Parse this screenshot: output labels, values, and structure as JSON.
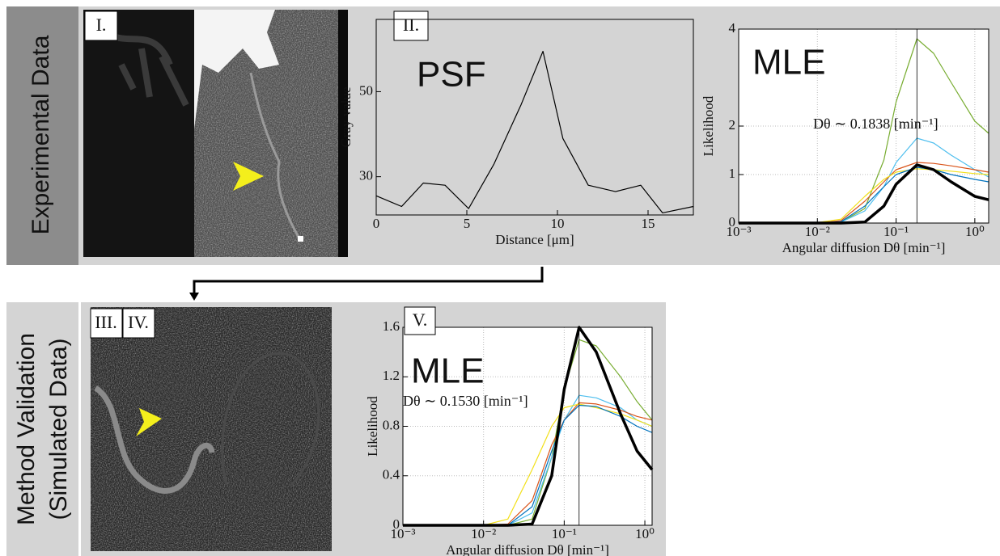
{
  "labels": {
    "top": "Experimental Data",
    "bottom": [
      "Method Validation",
      "(Simulated Data)"
    ]
  },
  "panels": [
    "I.",
    "II.",
    "III.",
    "IV.",
    "V."
  ],
  "chart_data": [
    {
      "type": "line",
      "annotation": "PSF",
      "xlabel": "Distance [μm]",
      "ylabel": "Gray value",
      "x": [
        0,
        1.4,
        2.6,
        3.8,
        5.1,
        6.5,
        8,
        9.2,
        10.3,
        11.7,
        13.2,
        14.6,
        15.8,
        17.5
      ],
      "series": [
        {
          "color": "#000000",
          "values": [
            25.5,
            23,
            28.5,
            28,
            22.5,
            33,
            47,
            59.5,
            39,
            28,
            26.5,
            28,
            21.5,
            23
          ]
        }
      ],
      "xlim": [
        0,
        17.5
      ],
      "ylim": [
        21,
        67
      ],
      "xticks": [
        0,
        5,
        10,
        15
      ],
      "yticks": [
        30,
        50
      ],
      "grid": false
    },
    {
      "type": "line",
      "annotation": "MLE",
      "note": "Dθ ∼ 0.1838 [min⁻¹]",
      "estimate": 0.1838,
      "xlabel": "Angular diffusion Dθ [min⁻¹]",
      "ylabel": "Likelihood",
      "xscale": "log",
      "grid": true,
      "x": [
        0.001,
        0.003,
        0.01,
        0.02,
        0.04,
        0.07,
        0.1,
        0.1838,
        0.3,
        0.5,
        1,
        1.5
      ],
      "series": [
        {
          "color": "#77ac30",
          "values": [
            0,
            0,
            0,
            0.02,
            0.3,
            1.3,
            2.5,
            3.8,
            3.5,
            2.9,
            2.1,
            1.85
          ]
        },
        {
          "color": "#4dbeee",
          "values": [
            0,
            0,
            0,
            0.02,
            0.25,
            0.75,
            1.25,
            1.75,
            1.65,
            1.4,
            1.1,
            0.95
          ]
        },
        {
          "color": "#d95319",
          "values": [
            0,
            0,
            0,
            0.05,
            0.45,
            0.85,
            1.1,
            1.25,
            1.23,
            1.18,
            1.1,
            1.05
          ]
        },
        {
          "color": "#f2e01a",
          "values": [
            0,
            0,
            0.01,
            0.08,
            0.55,
            0.9,
            1.05,
            1.12,
            1.1,
            1.07,
            1.02,
            1.0
          ]
        },
        {
          "color": "#0072bd",
          "values": [
            0,
            0,
            0,
            0.03,
            0.35,
            0.75,
            1.0,
            1.15,
            1.1,
            1.0,
            0.9,
            0.85
          ]
        },
        {
          "color": "#000000",
          "line_width": 3.5,
          "values": [
            0,
            0,
            0,
            0,
            0.02,
            0.35,
            0.8,
            1.2,
            1.1,
            0.85,
            0.55,
            0.48
          ]
        }
      ],
      "xlim": [
        0.001,
        1.5
      ],
      "ylim": [
        0,
        4
      ],
      "xticks": [
        {
          "value": 0.001,
          "label": "10⁻³"
        },
        {
          "value": 0.01,
          "label": "10⁻²"
        },
        {
          "value": 0.1,
          "label": "10⁻¹"
        },
        {
          "value": 1,
          "label": "10⁰"
        }
      ],
      "yticks": [
        0,
        1,
        2,
        4
      ]
    },
    {
      "type": "line",
      "annotation": "MLE",
      "note": "Dθ ∼ 0.1530 [min⁻¹]",
      "estimate": 0.153,
      "xlabel": "Angular diffusion Dθ [min⁻¹]",
      "ylabel": "Likelihood",
      "xscale": "log",
      "grid": true,
      "x": [
        0.001,
        0.005,
        0.01,
        0.02,
        0.04,
        0.07,
        0.1,
        0.153,
        0.25,
        0.5,
        0.8,
        1.23
      ],
      "series": [
        {
          "color": "#77ac30",
          "values": [
            0,
            0,
            0,
            0,
            0.05,
            0.55,
            1.1,
            1.5,
            1.45,
            1.2,
            1.0,
            0.85
          ]
        },
        {
          "color": "#4dbeee",
          "values": [
            0,
            0,
            0,
            0,
            0.1,
            0.55,
            0.85,
            1.05,
            1.03,
            0.95,
            0.85,
            0.8
          ]
        },
        {
          "color": "#d95319",
          "values": [
            0,
            0,
            0,
            0.01,
            0.2,
            0.65,
            0.85,
            0.99,
            0.98,
            0.93,
            0.88,
            0.85
          ]
        },
        {
          "color": "#f2e01a",
          "values": [
            0,
            0,
            0,
            0.05,
            0.45,
            0.8,
            0.95,
            0.98,
            0.95,
            0.9,
            0.85,
            0.8
          ]
        },
        {
          "color": "#0072bd",
          "values": [
            0,
            0,
            0,
            0,
            0.15,
            0.6,
            0.85,
            0.97,
            0.96,
            0.88,
            0.8,
            0.75
          ]
        },
        {
          "color": "#000000",
          "line_width": 3.5,
          "values": [
            0,
            0,
            0,
            0,
            0.01,
            0.4,
            1.1,
            1.6,
            1.4,
            0.9,
            0.6,
            0.45
          ]
        }
      ],
      "xlim": [
        0.001,
        1.23
      ],
      "ylim": [
        0,
        1.6
      ],
      "xticks": [
        {
          "value": 0.001,
          "label": "10⁻³"
        },
        {
          "value": 0.01,
          "label": "10⁻²"
        },
        {
          "value": 0.1,
          "label": "10⁻¹"
        },
        {
          "value": 1,
          "label": "10⁰"
        }
      ],
      "yticks": [
        0,
        0.4,
        0.8,
        1.2,
        1.6
      ]
    }
  ]
}
